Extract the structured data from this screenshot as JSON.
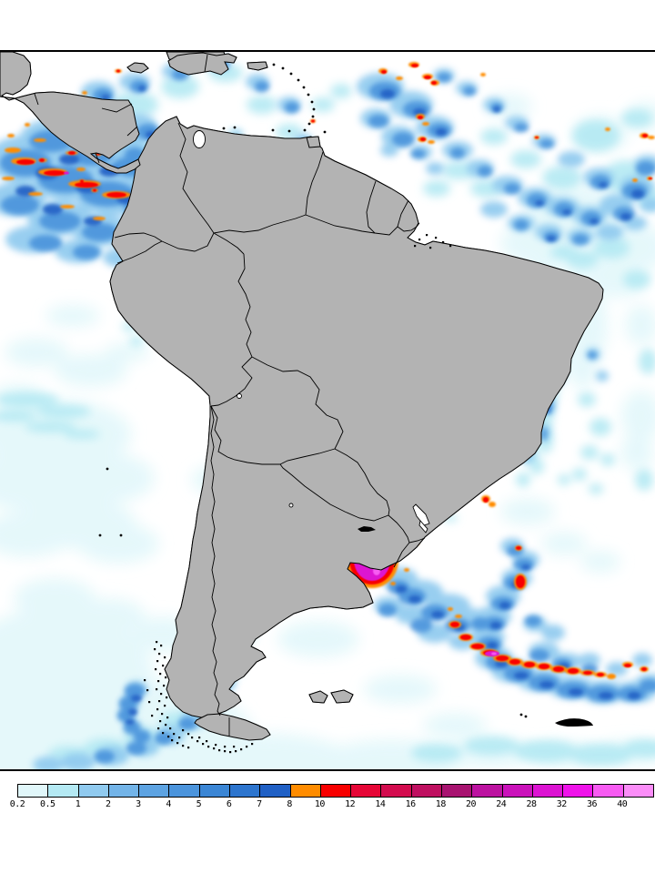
{
  "legend": {
    "values": [
      "0.2",
      "0.5",
      "1",
      "2",
      "3",
      "4",
      "5",
      "6",
      "7",
      "8",
      "10",
      "12",
      "14",
      "16",
      "18",
      "20",
      "24",
      "28",
      "32",
      "36",
      "40"
    ],
    "colors": [
      "#E1F7FA",
      "#B4E9F3",
      "#90CAEF",
      "#73B4E8",
      "#5DA3E2",
      "#4B94DC",
      "#3B86D5",
      "#2D75CE",
      "#2060C5",
      "#FF8C00",
      "#F80000",
      "#E60636",
      "#D30C4E",
      "#BF1060",
      "#A81370",
      "#BC12A0",
      "#CA12BA",
      "#DC13D2",
      "#EF13EA",
      "#F75BF2",
      "#FB8DF8"
    ]
  },
  "map": {
    "land_color": "#B3B3B3",
    "ocean_color": "#FFFFFF",
    "outline_color": "#000000",
    "frame_color": "#000000"
  }
}
